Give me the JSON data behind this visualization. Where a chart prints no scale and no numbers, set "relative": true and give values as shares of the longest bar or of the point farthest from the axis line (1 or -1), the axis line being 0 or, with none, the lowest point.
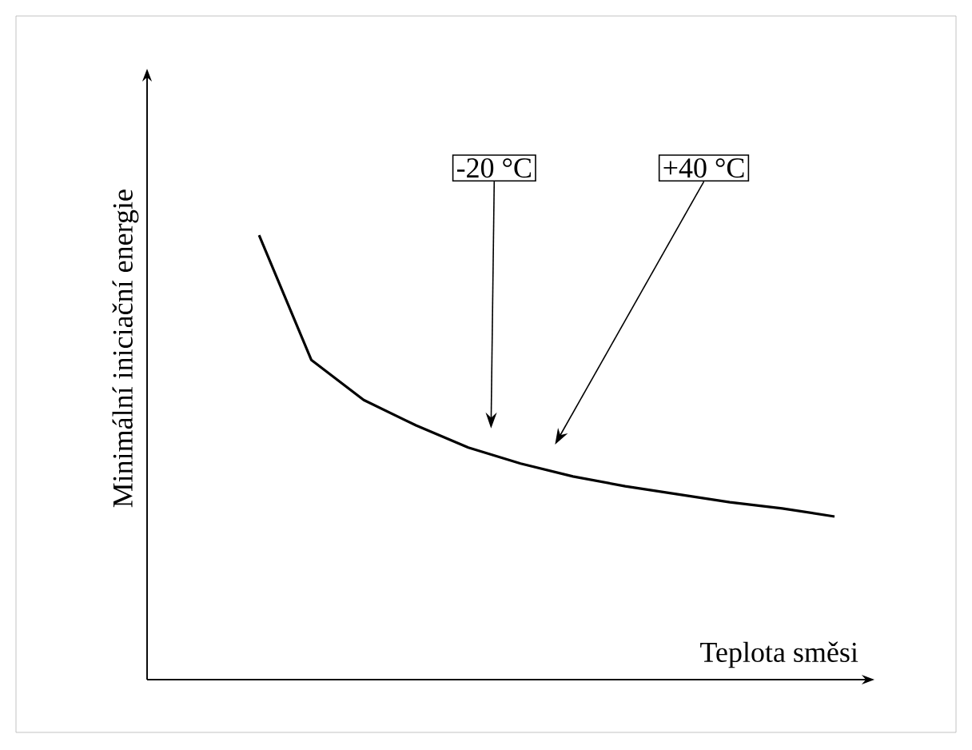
{
  "chart_data": {
    "type": "line",
    "relative": true,
    "xlabel": "Teplota směsi",
    "ylabel": "Minimální iniciační energie",
    "categories": [
      null,
      null,
      null,
      null,
      null,
      null,
      null,
      null,
      null,
      null,
      null,
      null
    ],
    "series": [
      {
        "color": "#000000",
        "values": [
          1.0,
          0.719,
          0.629,
          0.572,
          0.522,
          0.486,
          0.457,
          0.435,
          0.417,
          0.399,
          0.385,
          0.367
        ]
      }
    ],
    "annotations": [
      "-20 °C",
      "+40 °C"
    ]
  }
}
